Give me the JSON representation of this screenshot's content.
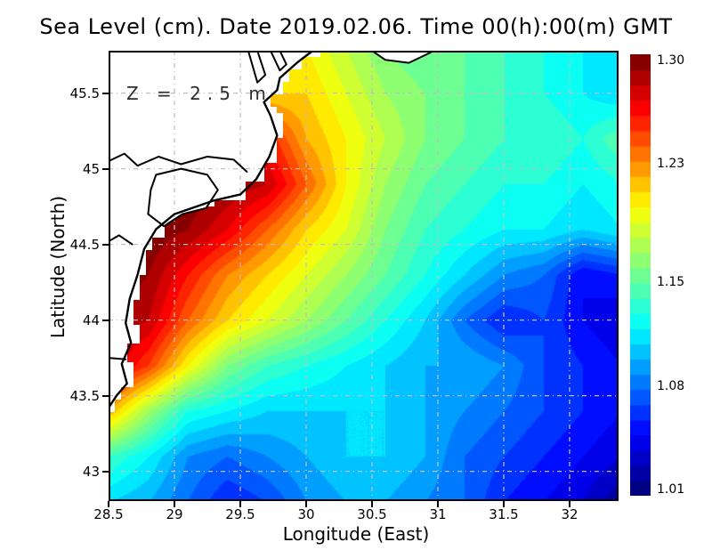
{
  "title": "Sea Level (cm). Date 2019.02.06. Time 00(h):00(m) GMT",
  "annotation": "Z = 2.5 m",
  "axes": {
    "x": {
      "label": "Longitude (East)",
      "tick_labels": [
        "28.5",
        "29",
        "29.5",
        "30",
        "30.5",
        "31",
        "31.5",
        "32"
      ],
      "tick_values": [
        28.5,
        29,
        29.5,
        30,
        30.5,
        31,
        31.5,
        32
      ],
      "range": [
        28.5,
        32.37
      ]
    },
    "y": {
      "label": "Latitude (North)",
      "tick_labels": [
        "45.5",
        "45",
        "44.5",
        "44",
        "43.5",
        "43"
      ],
      "tick_values": [
        45.5,
        45,
        44.5,
        44,
        43.5,
        43
      ],
      "range": [
        42.8,
        45.78
      ]
    }
  },
  "colorbar": {
    "labels": [
      "1.30",
      "1.23",
      "1.15",
      "1.08",
      "1.01"
    ],
    "label_values": [
      1.3,
      1.23,
      1.15,
      1.08,
      1.01
    ],
    "min": 1.01,
    "max": 1.3,
    "step": 0.01,
    "top_color": "#870000",
    "bottom_color": "#000082"
  },
  "grid_color": "#c4bcc4",
  "land_color": "#ffffff",
  "coast_color": "#000000",
  "chart_data": {
    "type": "heatmap",
    "variable": "Sea Level (cm)",
    "colormap": "jet",
    "colormap_stops": [
      {
        "t": 0.0,
        "rgb": [
          0,
          0,
          130
        ]
      },
      {
        "t": 0.13,
        "rgb": [
          0,
          0,
          255
        ]
      },
      {
        "t": 0.38,
        "rgb": [
          0,
          255,
          255
        ]
      },
      {
        "t": 0.66,
        "rgb": [
          255,
          255,
          0
        ]
      },
      {
        "t": 0.89,
        "rgb": [
          255,
          0,
          0
        ]
      },
      {
        "t": 1.0,
        "rgb": [
          135,
          0,
          0
        ]
      }
    ],
    "value_range": [
      1.01,
      1.3
    ],
    "lon": [
      28.5,
      28.8,
      29.1,
      29.4,
      29.7,
      30.0,
      30.3,
      30.6,
      30.9,
      31.2,
      31.5,
      31.8,
      32.1,
      32.4
    ],
    "lat": [
      45.8,
      45.5,
      45.2,
      44.9,
      44.6,
      44.3,
      44.0,
      43.7,
      43.4,
      43.1,
      42.8
    ],
    "values": [
      [
        1.21,
        1.21,
        1.21,
        1.21,
        1.2,
        1.2,
        1.18,
        1.16,
        1.15,
        1.15,
        1.14,
        1.13,
        1.12,
        1.12
      ],
      [
        1.22,
        1.22,
        1.22,
        1.22,
        1.21,
        1.21,
        1.19,
        1.17,
        1.16,
        1.15,
        1.14,
        1.13,
        1.12,
        1.11
      ],
      [
        1.24,
        1.24,
        1.24,
        1.25,
        1.26,
        1.22,
        1.2,
        1.18,
        1.16,
        1.15,
        1.14,
        1.14,
        1.13,
        1.15
      ],
      [
        1.3,
        1.3,
        1.3,
        1.29,
        1.28,
        1.24,
        1.2,
        1.17,
        1.15,
        1.14,
        1.13,
        1.13,
        1.12,
        1.13
      ],
      [
        1.3,
        1.3,
        1.29,
        1.27,
        1.24,
        1.21,
        1.19,
        1.16,
        1.14,
        1.13,
        1.12,
        1.12,
        1.11,
        1.12
      ],
      [
        1.3,
        1.29,
        1.26,
        1.23,
        1.21,
        1.19,
        1.17,
        1.15,
        1.13,
        1.11,
        1.09,
        1.08,
        1.05,
        1.06
      ],
      [
        1.29,
        1.28,
        1.24,
        1.21,
        1.19,
        1.17,
        1.15,
        1.13,
        1.11,
        1.08,
        1.06,
        1.07,
        1.05,
        1.04
      ],
      [
        1.28,
        1.25,
        1.2,
        1.16,
        1.14,
        1.13,
        1.12,
        1.11,
        1.1,
        1.1,
        1.09,
        1.07,
        1.06,
        1.05
      ],
      [
        1.22,
        1.17,
        1.13,
        1.12,
        1.11,
        1.11,
        1.11,
        1.11,
        1.1,
        1.09,
        1.08,
        1.07,
        1.06,
        1.05
      ],
      [
        1.14,
        1.12,
        1.09,
        1.08,
        1.09,
        1.1,
        1.11,
        1.11,
        1.1,
        1.08,
        1.07,
        1.06,
        1.05,
        1.04
      ],
      [
        1.11,
        1.1,
        1.08,
        1.06,
        1.07,
        1.09,
        1.1,
        1.1,
        1.09,
        1.08,
        1.06,
        1.05,
        1.04,
        1.02
      ]
    ],
    "coastline": [
      [
        30.05,
        45.78
      ],
      [
        29.93,
        45.7
      ],
      [
        29.8,
        45.6
      ],
      [
        29.78,
        45.52
      ],
      [
        29.68,
        45.44
      ],
      [
        29.73,
        45.35
      ],
      [
        29.78,
        45.22
      ],
      [
        29.72,
        45.08
      ],
      [
        29.62,
        44.93
      ],
      [
        29.5,
        44.83
      ],
      [
        29.3,
        44.79
      ],
      [
        29.0,
        44.7
      ],
      [
        28.86,
        44.6
      ],
      [
        28.77,
        44.47
      ],
      [
        28.72,
        44.3
      ],
      [
        28.66,
        44.14
      ],
      [
        28.63,
        43.98
      ],
      [
        28.67,
        43.85
      ],
      [
        28.6,
        43.71
      ],
      [
        28.64,
        43.58
      ],
      [
        28.56,
        43.5
      ],
      [
        28.5,
        43.42
      ]
    ],
    "features": [
      {
        "name": "danube-river",
        "type": "polyline",
        "pts": [
          [
            28.5,
            45.05
          ],
          [
            28.62,
            45.1
          ],
          [
            28.72,
            45.02
          ],
          [
            28.88,
            45.08
          ],
          [
            29.05,
            45.03
          ],
          [
            29.25,
            45.08
          ],
          [
            29.45,
            45.06
          ],
          [
            29.55,
            44.98
          ]
        ]
      },
      {
        "name": "danube-branch",
        "type": "polyline",
        "pts": [
          [
            28.5,
            44.52
          ],
          [
            28.58,
            44.56
          ],
          [
            28.68,
            44.5
          ]
        ]
      },
      {
        "name": "danube-south",
        "type": "polyline",
        "pts": [
          [
            28.5,
            43.75
          ],
          [
            28.63,
            43.74
          ]
        ]
      },
      {
        "name": "razim-lagoon",
        "type": "polygon",
        "pts": [
          [
            28.86,
            44.96
          ],
          [
            29.05,
            45.0
          ],
          [
            29.25,
            44.96
          ],
          [
            29.33,
            44.86
          ],
          [
            29.24,
            44.74
          ],
          [
            29.06,
            44.7
          ],
          [
            28.92,
            44.62
          ],
          [
            28.8,
            44.7
          ],
          [
            28.82,
            44.86
          ]
        ]
      },
      {
        "name": "liman-west",
        "type": "polygon",
        "pts": [
          [
            29.56,
            45.78
          ],
          [
            29.63,
            45.57
          ],
          [
            29.69,
            45.62
          ],
          [
            29.63,
            45.78
          ]
        ]
      },
      {
        "name": "liman-east",
        "type": "polygon",
        "pts": [
          [
            29.73,
            45.78
          ],
          [
            29.8,
            45.65
          ],
          [
            29.85,
            45.69
          ],
          [
            29.8,
            45.78
          ]
        ]
      },
      {
        "name": "north-spit",
        "type": "polygon",
        "pts": [
          [
            30.5,
            45.78
          ],
          [
            30.6,
            45.72
          ],
          [
            30.78,
            45.7
          ],
          [
            30.9,
            45.75
          ],
          [
            30.97,
            45.78
          ]
        ]
      }
    ]
  }
}
